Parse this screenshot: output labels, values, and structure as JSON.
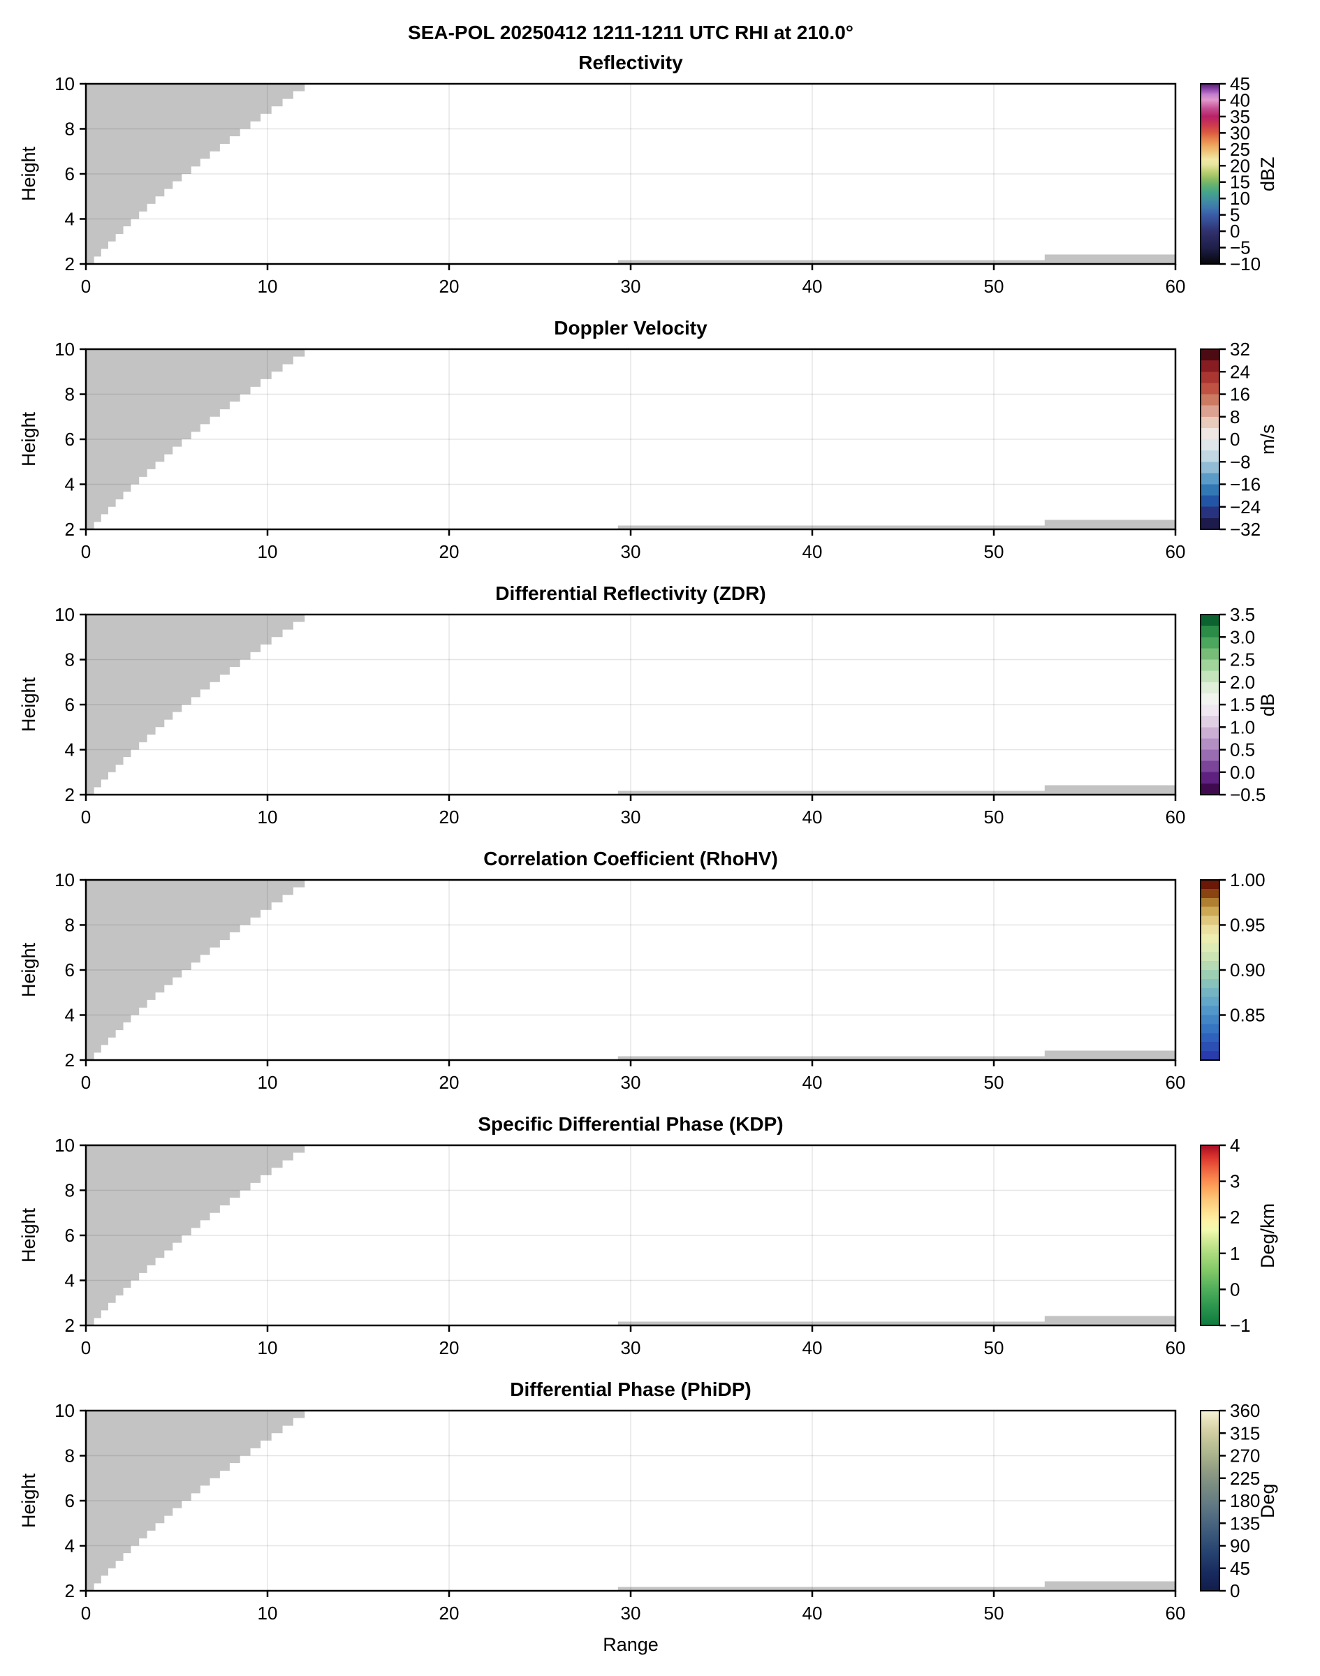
{
  "chart_data": {
    "type": "heatmap",
    "title": "SEA-POL 20250412 1211-1211 UTC RHI at 210.0°",
    "xlabel": "Range",
    "ylabel": "Height",
    "xlim": [
      0,
      60
    ],
    "ylim": [
      2,
      10
    ],
    "x_ticks": [
      0,
      10,
      20,
      30,
      40,
      50,
      60
    ],
    "y_ticks": [
      2,
      4,
      6,
      8,
      10
    ],
    "grid": true,
    "grid_x_lines": [
      10,
      20,
      30,
      40,
      50
    ],
    "grid_y_lines": [
      4,
      6,
      8
    ],
    "masked_color": "#c3c3c3",
    "masked_regions": {
      "wedge_stair_boundary": [
        [
          2.0,
          0.45
        ],
        [
          2.33,
          0.84
        ],
        [
          2.67,
          1.23
        ],
        [
          3.0,
          1.64
        ],
        [
          3.33,
          2.06
        ],
        [
          3.67,
          2.48
        ],
        [
          4.0,
          2.93
        ],
        [
          4.33,
          3.37
        ],
        [
          4.67,
          3.83
        ],
        [
          5.0,
          4.32
        ],
        [
          5.33,
          4.78
        ],
        [
          5.67,
          5.28
        ],
        [
          6.0,
          5.8
        ],
        [
          6.33,
          6.3
        ],
        [
          6.67,
          6.83
        ],
        [
          7.0,
          7.38
        ],
        [
          7.33,
          7.92
        ],
        [
          7.67,
          8.49
        ],
        [
          8.0,
          9.06
        ],
        [
          8.33,
          9.62
        ],
        [
          8.67,
          10.22
        ],
        [
          9.0,
          10.83
        ],
        [
          9.33,
          11.42
        ],
        [
          9.67,
          12.05
        ],
        [
          10.0,
          12.68
        ]
      ],
      "bottom_strips": [
        {
          "x0": 29.3,
          "x1": 60,
          "y0": 2,
          "y1": 2.17
        },
        {
          "x0": 52.8,
          "x1": 60,
          "y0": 2,
          "y1": 2.42
        }
      ]
    },
    "panels": [
      {
        "title": "Reflectivity",
        "units": "dBZ",
        "vmin": -10,
        "vmax": 45,
        "tick_values": [
          45,
          40,
          35,
          30,
          25,
          20,
          15,
          10,
          5,
          0,
          -5,
          -10
        ],
        "tick_labels": [
          "45",
          "40",
          "35",
          "30",
          "25",
          "20",
          "15",
          "10",
          "5",
          "0",
          "−5",
          "−10"
        ],
        "cmap": {
          "type": "smooth",
          "stops": [
            [
              0.0,
              "#070707"
            ],
            [
              0.05,
              "#14142f"
            ],
            [
              0.09,
              "#1f1f49"
            ],
            [
              0.14,
              "#28285c"
            ],
            [
              0.18,
              "#30306e"
            ],
            [
              0.23,
              "#344a8f"
            ],
            [
              0.27,
              "#3a5ba5"
            ],
            [
              0.31,
              "#3e76ad"
            ],
            [
              0.36,
              "#41929e"
            ],
            [
              0.4,
              "#45a689"
            ],
            [
              0.44,
              "#67b26f"
            ],
            [
              0.47,
              "#8cbc62"
            ],
            [
              0.51,
              "#bccf70"
            ],
            [
              0.55,
              "#e7e59c"
            ],
            [
              0.58,
              "#f0e9a5"
            ],
            [
              0.62,
              "#efc87d"
            ],
            [
              0.66,
              "#eda55e"
            ],
            [
              0.7,
              "#e57b49"
            ],
            [
              0.73,
              "#da5a40"
            ],
            [
              0.77,
              "#cd3a4e"
            ],
            [
              0.8,
              "#c02a5e"
            ],
            [
              0.82,
              "#b92268"
            ],
            [
              0.86,
              "#c44b8f"
            ],
            [
              0.89,
              "#d877b4"
            ],
            [
              0.91,
              "#e199cb"
            ],
            [
              0.94,
              "#c47fcf"
            ],
            [
              0.96,
              "#a058b8"
            ],
            [
              0.98,
              "#7c3795"
            ],
            [
              1.0,
              "#571f78"
            ]
          ]
        }
      },
      {
        "title": "Doppler Velocity",
        "units": "m/s",
        "vmin": -32,
        "vmax": 32,
        "tick_values": [
          32,
          24,
          16,
          8,
          0,
          -8,
          -16,
          -24,
          -32
        ],
        "tick_labels": [
          "32",
          "24",
          "16",
          "8",
          "0",
          "−8",
          "−16",
          "−24",
          "−32"
        ],
        "cmap": {
          "type": "discrete",
          "colors": [
            "#1d1a4c",
            "#27337e",
            "#2355a6",
            "#3178b5",
            "#5b9bc8",
            "#92bcd6",
            "#c1d7e2",
            "#dfe7ea",
            "#f0e7e2",
            "#e9cbbb",
            "#dca291",
            "#cd7a62",
            "#c05243",
            "#a93630",
            "#871c22",
            "#4c0b12"
          ]
        }
      },
      {
        "title": "Differential Reflectivity (ZDR)",
        "units": "dB",
        "vmin": -0.5,
        "vmax": 3.5,
        "tick_values": [
          3.5,
          3.0,
          2.5,
          2.0,
          1.5,
          1.0,
          0.5,
          0.0,
          -0.5
        ],
        "tick_labels": [
          "3.5",
          "3.0",
          "2.5",
          "2.0",
          "1.5",
          "1.0",
          "0.5",
          "0.0",
          "−0.5"
        ],
        "cmap": {
          "type": "discrete",
          "colors": [
            "#400a4e",
            "#5f2180",
            "#7b459a",
            "#9a6cb2",
            "#b48fc4",
            "#cbb0d4",
            "#e0d0e4",
            "#f0e8f1",
            "#f2f4ef",
            "#e0efda",
            "#c4e4bc",
            "#a0d49a",
            "#77bd78",
            "#4ba75e",
            "#2a8c47",
            "#0d6330"
          ]
        }
      },
      {
        "title": "Correlation Coefficient (RhoHV)",
        "units": "",
        "vmin": 0.8,
        "vmax": 1.0,
        "tick_values": [
          1.0,
          0.95,
          0.9,
          0.85
        ],
        "tick_labels": [
          "1.00",
          "0.95",
          "0.90",
          "0.85"
        ],
        "cmap": {
          "type": "discrete",
          "colors": [
            "#2a3cab",
            "#2c4fb4",
            "#2e62bc",
            "#3575c1",
            "#4286c5",
            "#5297c9",
            "#63a7c9",
            "#74b4c3",
            "#87c2bb",
            "#9cceb4",
            "#b5dab4",
            "#cce4b4",
            "#dfebb4",
            "#ecedb0",
            "#ece0a0",
            "#e0c87e",
            "#cda955",
            "#b08030",
            "#8a4412",
            "#6b1806"
          ]
        }
      },
      {
        "title": "Specific Differential Phase (KDP)",
        "units": "Deg/km",
        "vmin": -1,
        "vmax": 4,
        "tick_values": [
          4,
          3,
          2,
          1,
          0,
          -1
        ],
        "tick_labels": [
          "4",
          "3",
          "2",
          "1",
          "0",
          "−1"
        ],
        "cmap": {
          "type": "smooth",
          "stops": [
            [
              0.0,
              "#0e7b3e"
            ],
            [
              0.1,
              "#2a944d"
            ],
            [
              0.2,
              "#4fae5b"
            ],
            [
              0.3,
              "#7fc866"
            ],
            [
              0.4,
              "#abdb7e"
            ],
            [
              0.48,
              "#d5ec99"
            ],
            [
              0.53,
              "#f2faae"
            ],
            [
              0.58,
              "#fdf2a6"
            ],
            [
              0.63,
              "#fee291"
            ],
            [
              0.7,
              "#fdc678"
            ],
            [
              0.76,
              "#fda75d"
            ],
            [
              0.82,
              "#f8834c"
            ],
            [
              0.88,
              "#ec5b3c"
            ],
            [
              0.94,
              "#d8302b"
            ],
            [
              1.0,
              "#a50d25"
            ]
          ]
        }
      },
      {
        "title": "Differential Phase (PhiDP)",
        "units": "Deg",
        "vmin": 0,
        "vmax": 360,
        "tick_values": [
          360,
          315,
          270,
          225,
          180,
          135,
          90,
          45,
          0
        ],
        "tick_labels": [
          "360",
          "315",
          "270",
          "225",
          "180",
          "135",
          "90",
          "45",
          "0"
        ],
        "cmap": {
          "type": "smooth",
          "stops": [
            [
              0.0,
              "#111d4b"
            ],
            [
              0.1,
              "#182a5f"
            ],
            [
              0.22,
              "#274470"
            ],
            [
              0.34,
              "#405d7c"
            ],
            [
              0.46,
              "#5d7683"
            ],
            [
              0.57,
              "#778a82"
            ],
            [
              0.67,
              "#919d83"
            ],
            [
              0.77,
              "#afb78f"
            ],
            [
              0.87,
              "#cecca0"
            ],
            [
              0.94,
              "#e5dfb8"
            ],
            [
              1.0,
              "#f6f3da"
            ]
          ]
        }
      }
    ]
  }
}
